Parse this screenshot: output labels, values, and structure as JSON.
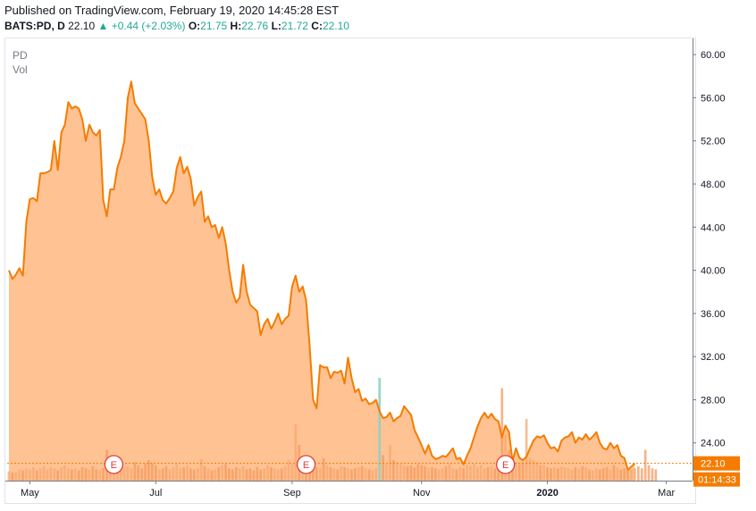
{
  "header": {
    "published": "Published on TradingView.com, February 19, 2020 14:45:28 EST",
    "symbol": "BATS:PD, D",
    "last": "22.10",
    "arrow": "▲",
    "change": "+0.44 (+2.03%)",
    "o_label": "O:",
    "o_value": "21.75",
    "h_label": "H:",
    "h_value": "22.76",
    "l_label": "L:",
    "l_value": "21.72",
    "c_label": "C:",
    "c_value": "22.10"
  },
  "legend": {
    "symbol": "PD",
    "volume": "Vol"
  },
  "colors": {
    "line": "#f57c00",
    "area": "#ffbb86",
    "up": "#26a69a",
    "earnings": "#e53935"
  },
  "chart_data": {
    "type": "area",
    "title": "PD",
    "ylim": [
      20.5,
      61.5
    ],
    "y_ticks": [
      "60.00",
      "56.00",
      "52.00",
      "48.00",
      "44.00",
      "40.00",
      "36.00",
      "32.00",
      "28.00",
      "24.00"
    ],
    "x_ticks": [
      "May",
      "Jul",
      "Sep",
      "Nov",
      "2020",
      "Mar"
    ],
    "x_tick_index": [
      6,
      42,
      81,
      118,
      154,
      188
    ],
    "total_bars": 196,
    "series": [
      {
        "name": "PD close",
        "values": [
          40.0,
          39.2,
          39.6,
          40.2,
          39.5,
          44.5,
          46.6,
          46.7,
          46.4,
          49.0,
          49.0,
          49.1,
          49.3,
          52.0,
          49.3,
          52.8,
          53.5,
          55.6,
          55.0,
          55.2,
          55.0,
          54.0,
          52.0,
          53.5,
          52.8,
          52.5,
          53.0,
          46.5,
          45.0,
          47.5,
          47.5,
          49.5,
          50.5,
          52.0,
          56.0,
          57.5,
          55.5,
          55.0,
          54.5,
          54.0,
          52.0,
          48.6,
          47.0,
          47.5,
          46.5,
          46.2,
          46.7,
          47.3,
          49.5,
          50.5,
          49.0,
          49.6,
          48.5,
          46.0,
          46.8,
          47.3,
          44.5,
          45.0,
          44.0,
          44.2,
          43.0,
          44.0,
          42.5,
          40.0,
          38.0,
          37.0,
          37.5,
          40.5,
          38.0,
          36.8,
          36.5,
          36.2,
          34.0,
          35.0,
          35.5,
          34.6,
          35.2,
          36.0,
          35.0,
          35.5,
          35.8,
          38.5,
          39.5,
          38.0,
          38.5,
          37.2,
          33.0,
          28.0,
          27.2,
          31.2,
          31.0,
          31.0,
          30.0,
          30.6,
          30.5,
          30.7,
          29.5,
          31.9,
          30.0,
          28.7,
          29.0,
          27.9,
          28.1,
          27.6,
          27.7,
          28.0,
          26.9,
          26.3,
          26.4,
          26.8,
          26.0,
          26.3,
          26.5,
          27.4,
          27.0,
          26.6,
          25.2,
          24.5,
          23.8,
          23.0,
          23.8,
          22.8,
          22.5,
          22.6,
          22.8,
          22.7,
          23.1,
          23.5,
          22.5,
          22.6,
          22.0,
          22.8,
          23.5,
          24.5,
          25.5,
          26.3,
          26.8,
          26.3,
          26.7,
          26.2,
          26.0,
          24.5,
          25.6,
          25.0,
          22.3,
          23.5,
          22.6,
          22.4,
          22.7,
          23.5,
          24.2,
          24.6,
          24.5,
          24.7,
          24.0,
          23.5,
          23.6,
          23.2,
          24.2,
          24.5,
          24.6,
          25.0,
          24.0,
          24.5,
          24.3,
          24.8,
          24.3,
          24.6,
          25.0,
          24.0,
          23.5,
          23.4,
          24.0,
          23.5,
          23.8,
          22.8,
          22.6,
          21.5,
          21.8,
          22.1
        ]
      },
      {
        "name": "Vol",
        "values": [
          0.9,
          0.8,
          0.8,
          1.1,
          1.0,
          1.2,
          1.1,
          1.3,
          1.0,
          1.2,
          1.4,
          1.1,
          1.3,
          1.2,
          1.0,
          1.3,
          1.5,
          1.2,
          1.1,
          1.2,
          1.0,
          1.3,
          1.2,
          1.1,
          1.4,
          1.1,
          1.0,
          1.2,
          3.0,
          1.5,
          1.2,
          1.1,
          1.2,
          1.3,
          1.4,
          1.2,
          1.8,
          1.5,
          1.2,
          1.7,
          2.0,
          1.7,
          1.5,
          1.1,
          1.2,
          1.4,
          1.1,
          1.3,
          1.6,
          1.2,
          1.3,
          1.5,
          1.2,
          1.1,
          1.2,
          2.1,
          1.4,
          1.2,
          1.0,
          1.1,
          1.3,
          1.5,
          1.6,
          1.2,
          1.1,
          1.3,
          1.2,
          1.4,
          1.1,
          1.2,
          1.0,
          1.3,
          1.1,
          1.2,
          1.5,
          1.3,
          1.2,
          1.1,
          1.2,
          1.4,
          2.0,
          1.6,
          5.5,
          3.5,
          2.2,
          1.8,
          1.6,
          1.5,
          1.3,
          1.2,
          2.2,
          1.5,
          1.3,
          1.2,
          1.1,
          1.4,
          1.3,
          1.2,
          1.1,
          1.2,
          1.3,
          1.4,
          1.2,
          1.1,
          1.0,
          1.2,
          10.0,
          2.5,
          1.6,
          3.5,
          2.0,
          1.8,
          1.6,
          1.5,
          1.4,
          1.5,
          1.3,
          1.6,
          1.5,
          1.4,
          1.2,
          1.3,
          1.2,
          1.1,
          1.2,
          1.4,
          1.6,
          1.2,
          1.1,
          1.3,
          1.2,
          1.5,
          1.4,
          1.6,
          1.3,
          1.5,
          1.2,
          1.3,
          1.4,
          1.2,
          1.1,
          9.0,
          4.5,
          3.0,
          2.0,
          1.8,
          1.6,
          1.8,
          6.0,
          2.2,
          2.0,
          1.8,
          1.5,
          1.5,
          1.3,
          1.2,
          1.3,
          1.2,
          1.4,
          1.3,
          1.2,
          1.1,
          1.3,
          1.2,
          1.4,
          1.3,
          1.1,
          1.0,
          1.2,
          1.1,
          1.2,
          1.3,
          1.1,
          1.5,
          1.3,
          1.1,
          1.2,
          1.0,
          1.1,
          1.2,
          1.4,
          1.2,
          3.0,
          1.5,
          1.2,
          1.1
        ]
      }
    ],
    "earnings_index": [
      30,
      85,
      142
    ],
    "earnings_label": "E",
    "last_price_label": "22.10",
    "countdown_label": "01:14:33"
  }
}
